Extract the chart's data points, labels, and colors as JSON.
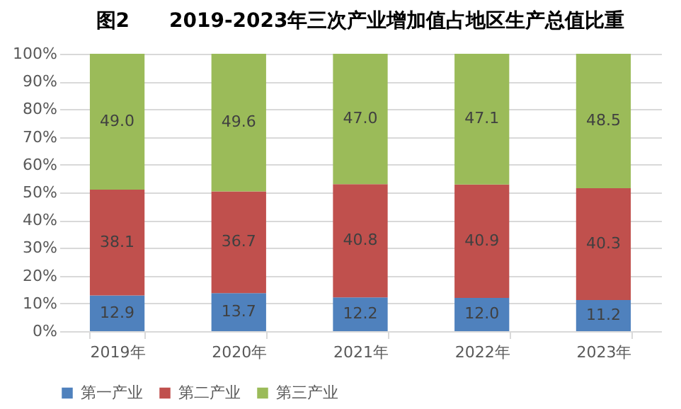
{
  "chart_data": {
    "type": "bar",
    "stacked": true,
    "title": "图2　　2019-2023年三次产业增加值占地区生产总值比重",
    "categories": [
      "2019年",
      "2020年",
      "2021年",
      "2022年",
      "2023年"
    ],
    "series": [
      {
        "name": "第一产业",
        "color": "#4f81bd",
        "values": [
          12.9,
          13.7,
          12.2,
          12.0,
          11.2
        ],
        "value_labels": [
          "12.9",
          "13.7",
          "12.2",
          "12.0",
          "11.2"
        ]
      },
      {
        "name": "第二产业",
        "color": "#c0504d",
        "values": [
          38.1,
          36.7,
          40.8,
          40.9,
          40.3
        ],
        "value_labels": [
          "38.1",
          "36.7",
          "40.8",
          "40.9",
          "40.3"
        ]
      },
      {
        "name": "第三产业",
        "color": "#9bbb59",
        "values": [
          49.0,
          49.6,
          47.0,
          47.1,
          48.5
        ],
        "value_labels": [
          "49.0",
          "49.6",
          "47.0",
          "47.1",
          "48.5"
        ]
      }
    ],
    "ylim": [
      0,
      100
    ],
    "yticks": [
      {
        "value": 0,
        "label": "0%"
      },
      {
        "value": 10,
        "label": "10%"
      },
      {
        "value": 20,
        "label": "20%"
      },
      {
        "value": 30,
        "label": "30%"
      },
      {
        "value": 40,
        "label": "40%"
      },
      {
        "value": 50,
        "label": "50%"
      },
      {
        "value": 60,
        "label": "60%"
      },
      {
        "value": 70,
        "label": "70%"
      },
      {
        "value": 80,
        "label": "80%"
      },
      {
        "value": 90,
        "label": "90%"
      },
      {
        "value": 100,
        "label": "100%"
      }
    ],
    "grid": "y",
    "legend": "bottom"
  }
}
